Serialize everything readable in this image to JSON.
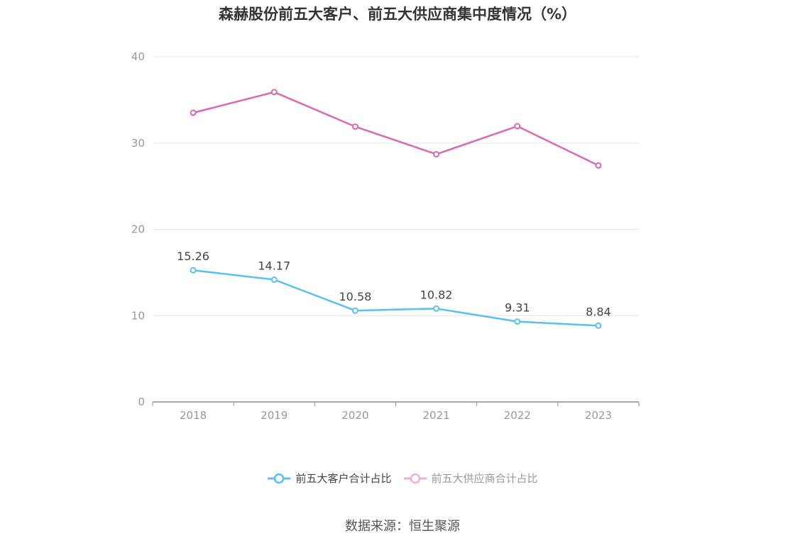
{
  "title": "森赫股份前五大客户、前五大供应商集中度情况（%）",
  "source": "数据来源：恒生聚源",
  "colors": {
    "customers": "#5bc0f0",
    "suppliers": "#d46bb4",
    "legend_suppliers": "#eab0d6",
    "grid": "#e4e7ef",
    "axis": "#8c8c8c",
    "tick_text": "#999999",
    "label_text": "#444444"
  },
  "chart_data": {
    "type": "line",
    "title": "森赫股份前五大客户、前五大供应商集中度情况（%）",
    "categories": [
      "2018",
      "2019",
      "2020",
      "2021",
      "2022",
      "2023"
    ],
    "ylim": [
      0,
      40
    ],
    "yticks": [
      "0",
      "10",
      "20",
      "30",
      "40"
    ],
    "grid": true,
    "legend_position": "bottom-center",
    "series": [
      {
        "name": "前五大客户合计占比",
        "values": [
          15.26,
          14.17,
          10.58,
          10.82,
          9.31,
          8.84
        ],
        "labels": [
          "15.26",
          "14.17",
          "10.58",
          "10.82",
          "9.31",
          "8.84"
        ]
      },
      {
        "name": "前五大供应商合计占比",
        "values": [
          33.5,
          35.9,
          31.9,
          28.7,
          31.95,
          27.4
        ]
      }
    ]
  }
}
